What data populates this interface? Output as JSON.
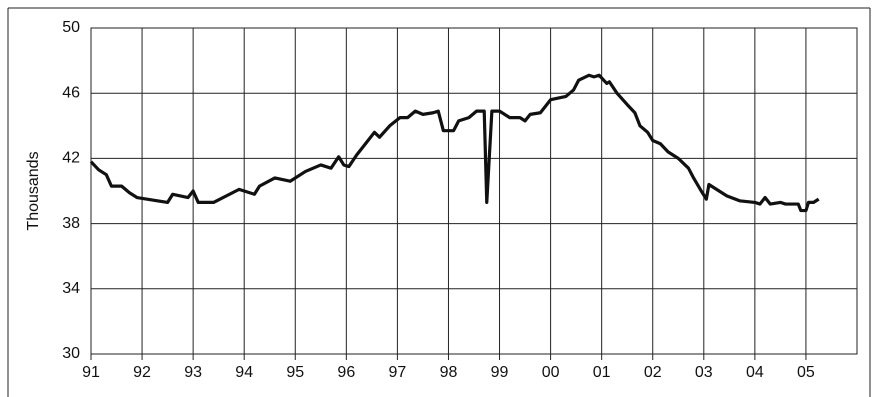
{
  "chart_data": {
    "type": "line",
    "y_label": "Thousands",
    "xlim": [
      1991,
      2006
    ],
    "xticks": [
      {
        "value": 1991,
        "label": "91"
      },
      {
        "value": 1992,
        "label": "92"
      },
      {
        "value": 1993,
        "label": "93"
      },
      {
        "value": 1994,
        "label": "94"
      },
      {
        "value": 1995,
        "label": "95"
      },
      {
        "value": 1996,
        "label": "96"
      },
      {
        "value": 1997,
        "label": "97"
      },
      {
        "value": 1998,
        "label": "98"
      },
      {
        "value": 1999,
        "label": "99"
      },
      {
        "value": 2000,
        "label": "00"
      },
      {
        "value": 2001,
        "label": "01"
      },
      {
        "value": 2002,
        "label": "02"
      },
      {
        "value": 2003,
        "label": "03"
      },
      {
        "value": 2004,
        "label": "04"
      },
      {
        "value": 2005,
        "label": "05"
      }
    ],
    "ylim": [
      30,
      50
    ],
    "yticks": [
      30,
      34,
      38,
      42,
      46,
      50
    ],
    "grid": true,
    "series": [
      {
        "color": "#111111",
        "x": [
          1991.0,
          1991.15,
          1991.3,
          1991.4,
          1991.6,
          1991.75,
          1991.9,
          1992.1,
          1992.3,
          1992.5,
          1992.6,
          1992.9,
          1993.0,
          1993.1,
          1993.4,
          1993.9,
          1994.2,
          1994.3,
          1994.6,
          1994.9,
          1995.2,
          1995.5,
          1995.7,
          1995.85,
          1995.95,
          1996.05,
          1996.2,
          1996.4,
          1996.55,
          1996.65,
          1996.85,
          1997.05,
          1997.2,
          1997.35,
          1997.5,
          1997.7,
          1997.8,
          1997.9,
          1998.1,
          1998.2,
          1998.4,
          1998.55,
          1998.7,
          1998.75,
          1998.85,
          1999.0,
          1999.2,
          1999.4,
          1999.5,
          1999.6,
          1999.8,
          2000.0,
          2000.3,
          2000.45,
          2000.55,
          2000.75,
          2000.85,
          2000.95,
          2001.1,
          2001.15,
          2001.3,
          2001.5,
          2001.65,
          2001.75,
          2001.9,
          2002.0,
          2002.15,
          2002.3,
          2002.5,
          2002.7,
          2002.8,
          2002.95,
          2003.05,
          2003.1,
          2003.3,
          2003.45,
          2003.7,
          2004.0,
          2004.1,
          2004.2,
          2004.3,
          2004.5,
          2004.6,
          2004.85,
          2004.9,
          2005.0,
          2005.05,
          2005.15,
          2005.25
        ],
        "values": [
          41.8,
          41.3,
          41.0,
          40.3,
          40.3,
          39.9,
          39.6,
          39.5,
          39.4,
          39.3,
          39.8,
          39.6,
          40.0,
          39.3,
          39.3,
          40.1,
          39.8,
          40.3,
          40.8,
          40.6,
          41.2,
          41.6,
          41.4,
          42.1,
          41.6,
          41.5,
          42.2,
          43.0,
          43.6,
          43.3,
          44.0,
          44.5,
          44.5,
          44.9,
          44.7,
          44.8,
          44.9,
          43.7,
          43.7,
          44.3,
          44.5,
          44.9,
          44.9,
          39.3,
          44.9,
          44.9,
          44.5,
          44.5,
          44.3,
          44.7,
          44.8,
          45.6,
          45.8,
          46.2,
          46.8,
          47.1,
          47.0,
          47.1,
          46.6,
          46.7,
          46.0,
          45.3,
          44.8,
          44.0,
          43.6,
          43.1,
          42.9,
          42.4,
          42.0,
          41.4,
          40.8,
          40.0,
          39.5,
          40.4,
          40.0,
          39.7,
          39.4,
          39.3,
          39.2,
          39.6,
          39.2,
          39.3,
          39.2,
          39.2,
          38.8,
          38.8,
          39.3,
          39.3,
          39.5
        ]
      }
    ]
  }
}
